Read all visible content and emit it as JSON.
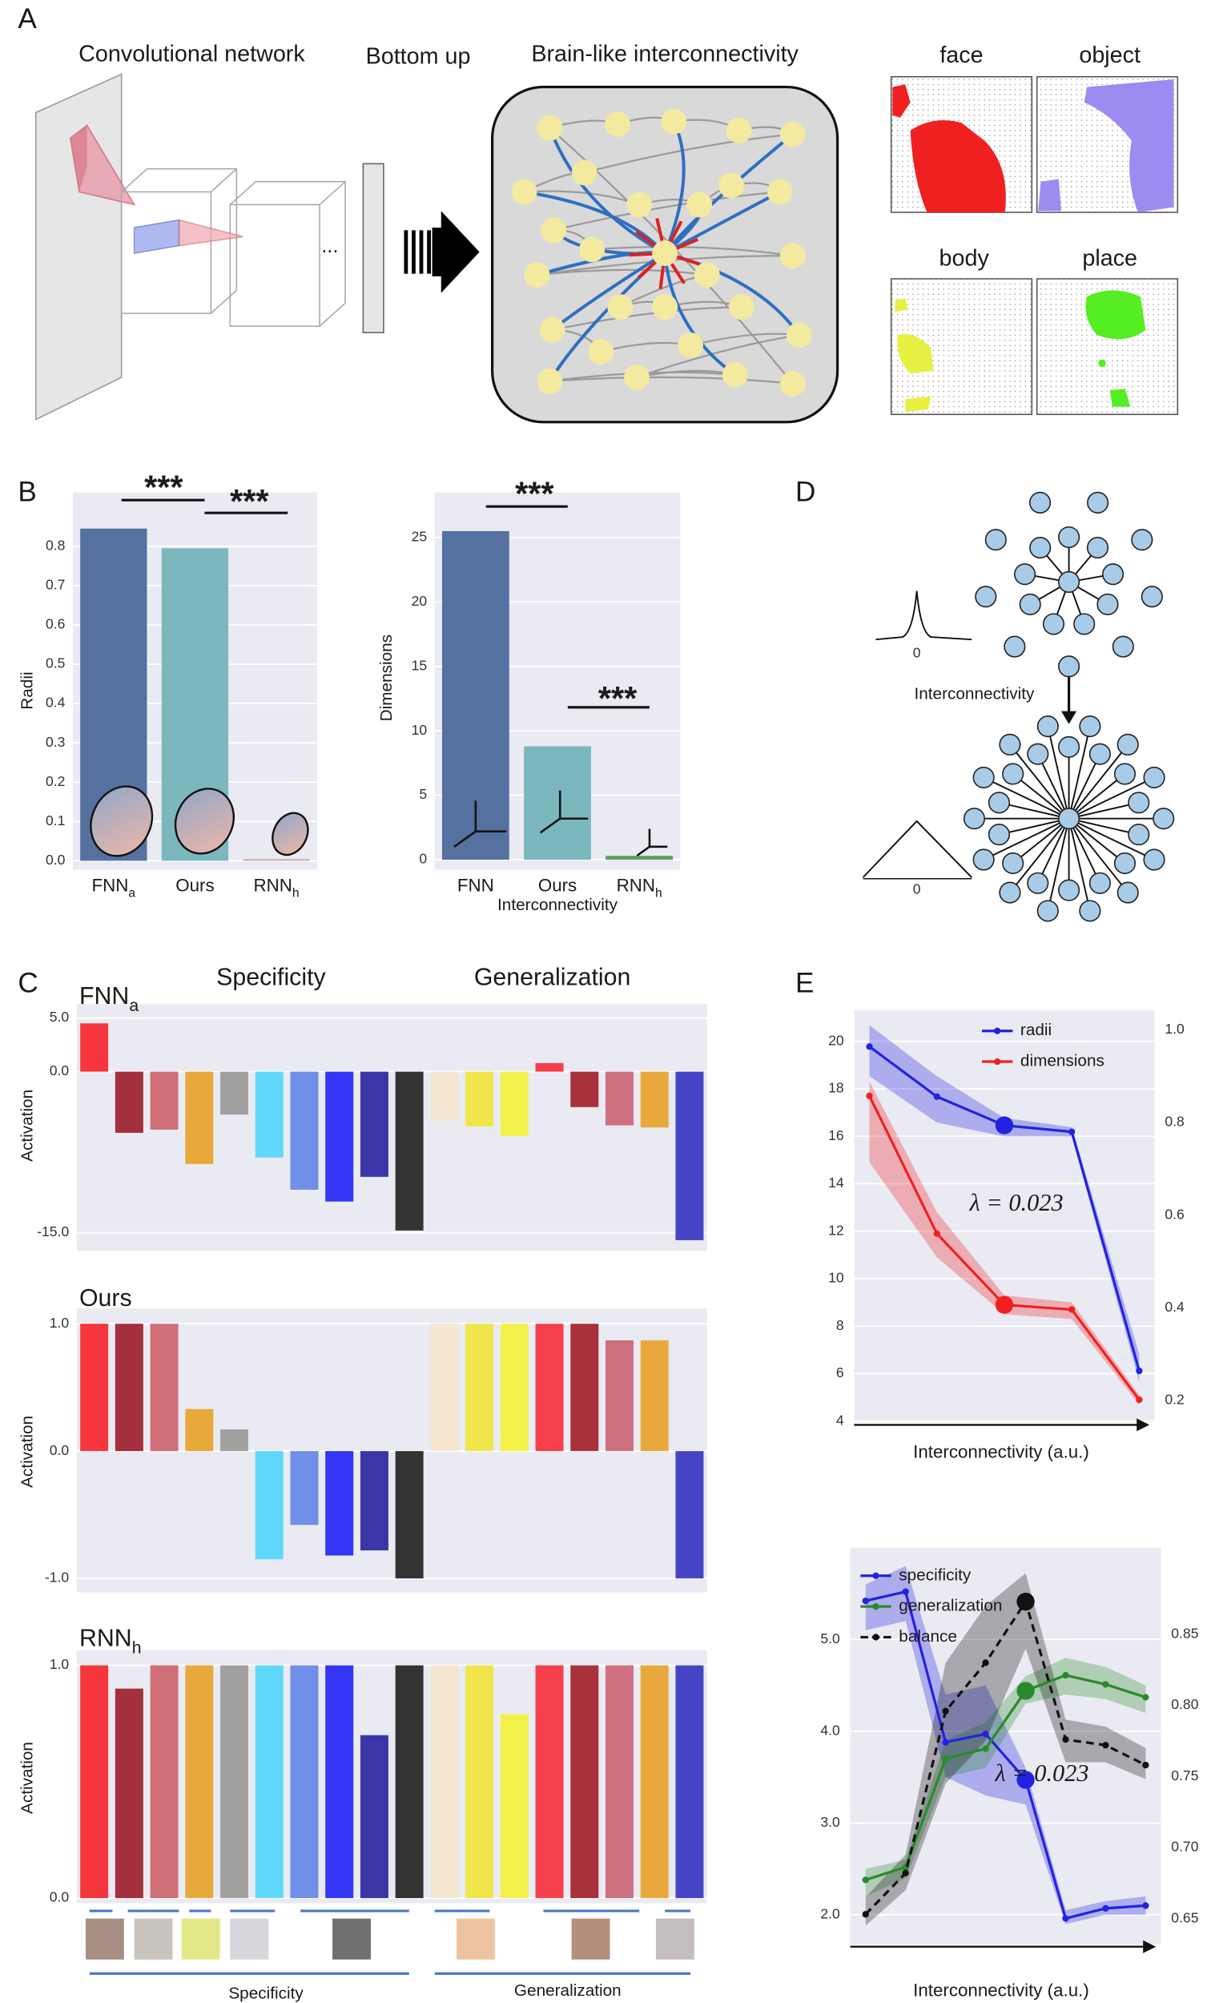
{
  "panels": {
    "a": "A",
    "b": "B",
    "c": "C",
    "d": "D",
    "e": "E"
  },
  "diagram_a": {
    "cnn_label": "Convolutional network",
    "ellipsis": "...",
    "bottom_up": "Bottom up",
    "brain_label": "Brain-like interconnectivity",
    "maps": [
      "face",
      "object",
      "body",
      "place"
    ]
  },
  "diagram_d": {
    "kernel_zero": [
      "0",
      "0"
    ],
    "label": "Interconnectivity"
  },
  "chart_data": [
    {
      "type": "bar",
      "ylabel": "Radii",
      "categories": [
        "FNN",
        "Ours",
        "RNN"
      ],
      "category_subscripts": [
        "a",
        null,
        "h"
      ],
      "values": [
        0.845,
        0.795,
        0.004
      ],
      "colors": [
        "#5471a0",
        "#7ab8be",
        "#c8a8a8"
      ],
      "ylim": [
        -0.023,
        0.937
      ],
      "yticks": [
        {
          "value": 0,
          "label": "0.0"
        },
        0.1,
        0.2,
        0.3,
        0.4,
        0.5,
        0.6,
        0.7,
        0.8
      ],
      "grid": true,
      "annotations": [
        "***",
        "***"
      ]
    },
    {
      "type": "bar",
      "ylabel": "Dimensions",
      "xlabel": "Interconnectivity",
      "categories": [
        "FNN",
        "Ours",
        "RNN"
      ],
      "category_subscripts": [
        null,
        null,
        "h"
      ],
      "values": [
        25.5,
        8.8,
        0.3
      ],
      "colors": [
        "#5471a0",
        "#7ab8be",
        "#5aa060"
      ],
      "ylim": [
        -0.78,
        28.5
      ],
      "yticks": [
        0,
        5,
        10,
        15,
        20,
        25
      ],
      "grid": true,
      "annotations": [
        "***",
        "***"
      ]
    },
    {
      "type": "bar",
      "title": "FNN",
      "title_subscript": "a",
      "group_labels": [
        "Specificity",
        "Generalization"
      ],
      "ylabel": "Activation",
      "values": [
        4.5,
        -5.7,
        -5.4,
        -8.6,
        -4.0,
        -8.0,
        -11.0,
        -12.1,
        -9.8,
        -14.8,
        -4.6,
        -5.1,
        -6.0,
        0.8,
        -3.3,
        -5.0,
        -5.2,
        -15.7
      ],
      "colors": [
        "#f5363c",
        "#a3303c",
        "#cf6f78",
        "#e8a93a",
        "#a0a0a0",
        "#5fd8fa",
        "#6f8fe8",
        "#3434f5",
        "#3a36a8",
        "#333333",
        "#f4e6d0",
        "#f0e64c",
        "#f2f24a",
        "#f5404c",
        "#a8313c",
        "#cf7080",
        "#e8a83c",
        "#4444c4"
      ],
      "ylim": [
        -16.7,
        6.3
      ],
      "yticks": [
        {
          "value": -15,
          "label": "-15.0"
        },
        {
          "value": 0,
          "label": "0.0"
        },
        {
          "value": 5,
          "label": "5.0"
        }
      ],
      "grid": true
    },
    {
      "type": "bar",
      "title": "Ours",
      "ylabel": "Activation",
      "values": [
        1,
        1,
        1,
        0.33,
        0.17,
        -0.85,
        -0.58,
        -0.82,
        -0.78,
        -1,
        1,
        1,
        1,
        1,
        1,
        0.87,
        0.87,
        -1
      ],
      "colors": [
        "#f5363c",
        "#a3303c",
        "#cf6f78",
        "#e8a93a",
        "#a0a0a0",
        "#5fd8fa",
        "#6f8fe8",
        "#3434f5",
        "#3a36a8",
        "#333333",
        "#f4e6d0",
        "#f0e64c",
        "#f2f24a",
        "#f5404c",
        "#a8313c",
        "#cf7080",
        "#e8a83c",
        "#4444c4"
      ],
      "ylim": [
        -1.11,
        1.12
      ],
      "yticks": [
        {
          "value": -1,
          "label": "-1.0"
        },
        {
          "value": 0,
          "label": "0.0"
        },
        {
          "value": 1,
          "label": "1.0"
        }
      ],
      "grid": true
    },
    {
      "type": "bar",
      "title": "RNN",
      "title_subscript": "h",
      "group_labels": [
        "Specificity",
        "Generalization"
      ],
      "ylabel": "Activation",
      "values": [
        1,
        0.9,
        1,
        1,
        1,
        1,
        1,
        1,
        0.7,
        1,
        1,
        1,
        0.79,
        1,
        1,
        1,
        1,
        1
      ],
      "colors": [
        "#f5363c",
        "#a3303c",
        "#cf6f78",
        "#e8a93a",
        "#a0a0a0",
        "#5fd8fa",
        "#6f8fe8",
        "#3434f5",
        "#3a36a8",
        "#333333",
        "#f4e6d0",
        "#f0e64c",
        "#f2f24a",
        "#f5404c",
        "#a8313c",
        "#cf7080",
        "#e8a83c",
        "#4444c4"
      ],
      "ylim": [
        -0.022,
        1.066
      ],
      "yticks": [
        {
          "value": 0,
          "label": "0.0"
        },
        {
          "value": 1,
          "label": "1.0"
        }
      ],
      "grid": true
    },
    {
      "type": "line",
      "xlabel": "Interconnectivity (a.u.)",
      "categories": [
        null,
        null,
        null,
        null,
        null
      ],
      "series": [
        {
          "name": "radii",
          "color": "#2222e0",
          "axis": "y2",
          "values": [
            0.964,
            0.856,
            0.794,
            0.78,
            0.264
          ],
          "lower": [
            0.9,
            0.8,
            0.77,
            0.77,
            0.24
          ],
          "upper": [
            1.01,
            0.9,
            0.81,
            0.79,
            0.3
          ]
        },
        {
          "name": "dimensions",
          "color": "#f02020",
          "values": [
            17.7,
            11.9,
            8.9,
            8.7,
            4.9
          ],
          "lower": [
            14.9,
            10.9,
            8.5,
            8.3,
            4.7
          ],
          "upper": [
            18.3,
            12.8,
            9.3,
            9.0,
            5.1
          ]
        }
      ],
      "marker_index": 2,
      "ylim": [
        3.95,
        21.3
      ],
      "yticks": [
        4,
        6,
        8,
        10,
        12,
        14,
        16,
        18,
        20
      ],
      "y2lim": [
        0.153,
        1.042
      ],
      "y2ticks": [
        0.2,
        0.4,
        0.6,
        0.8,
        {
          "value": 1,
          "label": "1.0"
        }
      ],
      "legend": "upper right",
      "annotation": "λ = 0.023",
      "grid": true
    },
    {
      "type": "line",
      "xlabel": "Interconnectivity (a.u.)",
      "categories": [
        null,
        null,
        null,
        null,
        null,
        null,
        null,
        null
      ],
      "series": [
        {
          "name": "specificity",
          "color": "#2222e0",
          "values": [
            5.42,
            5.52,
            3.88,
            3.97,
            3.47,
            1.96,
            2.07,
            2.1
          ],
          "lower": [
            5.1,
            5.2,
            3.5,
            3.3,
            3.2,
            1.9,
            2.0,
            2.0
          ],
          "upper": [
            5.6,
            5.8,
            4.4,
            4.5,
            3.6,
            2.05,
            2.15,
            2.2
          ]
        },
        {
          "name": "generalization",
          "color": "#2a8a2a",
          "values": [
            2.38,
            2.52,
            3.7,
            3.81,
            4.44,
            4.61,
            4.51,
            4.37
          ],
          "lower": [
            2.2,
            2.4,
            3.5,
            3.6,
            4.3,
            4.4,
            4.35,
            4.2
          ],
          "upper": [
            2.5,
            2.6,
            3.9,
            4.1,
            4.6,
            4.8,
            4.7,
            4.5
          ]
        },
        {
          "name": "balance",
          "color": "#111111",
          "axis": "y2",
          "linestyle": "dashed",
          "values": [
            0.653,
            0.682,
            0.796,
            0.83,
            0.873,
            0.776,
            0.772,
            0.758
          ],
          "lower": [
            0.645,
            0.67,
            0.745,
            0.775,
            0.84,
            0.76,
            0.76,
            0.748
          ],
          "upper": [
            0.665,
            0.695,
            0.83,
            0.87,
            0.893,
            0.79,
            0.785,
            0.77
          ]
        }
      ],
      "marker_index": 4,
      "ylim": [
        1.68,
        6.0
      ],
      "yticks": [
        {
          "value": 2,
          "label": "2.0"
        },
        {
          "value": 3,
          "label": "3.0"
        },
        {
          "value": 4,
          "label": "4.0"
        },
        {
          "value": 5,
          "label": "5.0"
        }
      ],
      "y2lim": [
        0.632,
        0.911
      ],
      "y2ticks": [
        0.65,
        {
          "value": 0.7,
          "label": "0.70"
        },
        0.75,
        {
          "value": 0.8,
          "label": "0.80"
        },
        0.85
      ],
      "legend": "upper left",
      "annotation": "λ = 0.023",
      "grid": true
    }
  ]
}
